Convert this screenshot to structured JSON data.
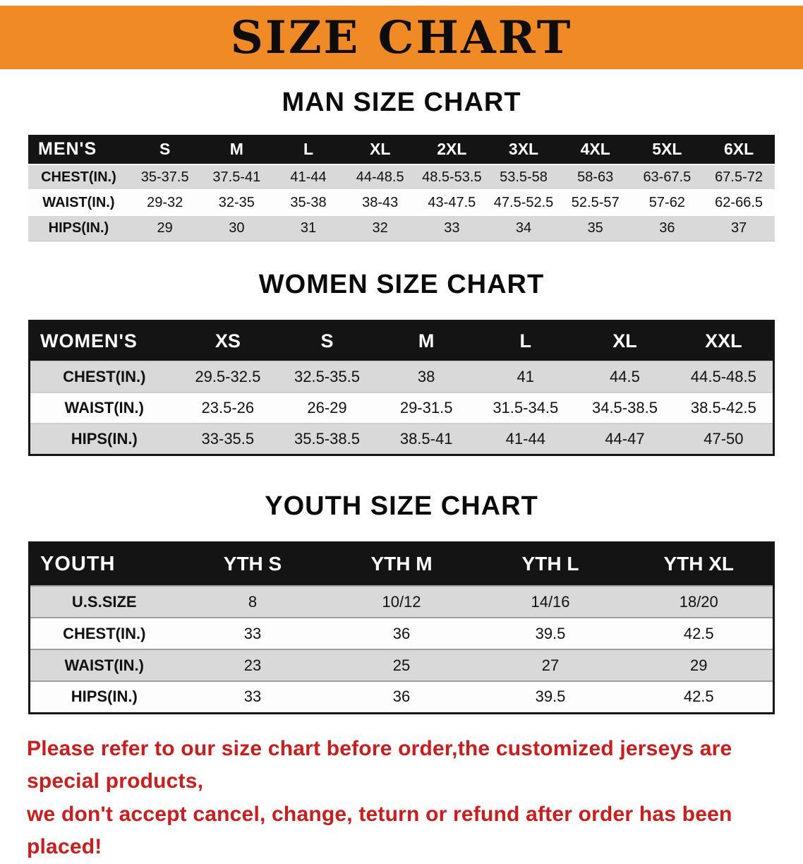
{
  "banner": {
    "title": "SIZE CHART",
    "bg_color": "#f08a24"
  },
  "chart_data": [
    {
      "type": "table",
      "group": "men",
      "title": "MAN SIZE CHART",
      "corner_label": "MEN'S",
      "columns": [
        "S",
        "M",
        "L",
        "XL",
        "2XL",
        "3XL",
        "4XL",
        "5XL",
        "6XL"
      ],
      "rows": [
        {
          "label": "CHEST(IN.)",
          "values": [
            "35-37.5",
            "37.5-41",
            "41-44",
            "44-48.5",
            "48.5-53.5",
            "53.5-58",
            "58-63",
            "63-67.5",
            "67.5-72"
          ]
        },
        {
          "label": "WAIST(IN.)",
          "values": [
            "29-32",
            "32-35",
            "35-38",
            "38-43",
            "43-47.5",
            "47.5-52.5",
            "52.5-57",
            "57-62",
            "62-66.5"
          ]
        },
        {
          "label": "HIPS(IN.)",
          "values": [
            "29",
            "30",
            "31",
            "32",
            "33",
            "34",
            "35",
            "36",
            "37"
          ]
        }
      ]
    },
    {
      "type": "table",
      "group": "women",
      "title": "WOMEN SIZE CHART",
      "corner_label": "WOMEN'S",
      "columns": [
        "XS",
        "S",
        "M",
        "L",
        "XL",
        "XXL"
      ],
      "rows": [
        {
          "label": "CHEST(IN.)",
          "values": [
            "29.5-32.5",
            "32.5-35.5",
            "38",
            "41",
            "44.5",
            "44.5-48.5"
          ]
        },
        {
          "label": "WAIST(IN.)",
          "values": [
            "23.5-26",
            "26-29",
            "29-31.5",
            "31.5-34.5",
            "34.5-38.5",
            "38.5-42.5"
          ]
        },
        {
          "label": "HIPS(IN.)",
          "values": [
            "33-35.5",
            "35.5-38.5",
            "38.5-41",
            "41-44",
            "44-47",
            "47-50"
          ]
        }
      ]
    },
    {
      "type": "table",
      "group": "youth",
      "title": "YOUTH SIZE CHART",
      "corner_label": "YOUTH",
      "columns": [
        "YTH S",
        "YTH M",
        "YTH L",
        "YTH XL"
      ],
      "rows": [
        {
          "label": "U.S.SIZE",
          "values": [
            "8",
            "10/12",
            "14/16",
            "18/20"
          ]
        },
        {
          "label": "CHEST(IN.)",
          "values": [
            "33",
            "36",
            "39.5",
            "42.5"
          ]
        },
        {
          "label": "WAIST(IN.)",
          "values": [
            "23",
            "25",
            "27",
            "29"
          ]
        },
        {
          "label": "HIPS(IN.)",
          "values": [
            "33",
            "36",
            "39.5",
            "42.5"
          ]
        }
      ]
    }
  ],
  "footer": {
    "color": "#d11a1a",
    "lines": [
      "Please refer to our size chart before order,the customized jerseys are special products,",
      "we don't accept cancel, change, teturn or refund after order has been placed!"
    ]
  }
}
